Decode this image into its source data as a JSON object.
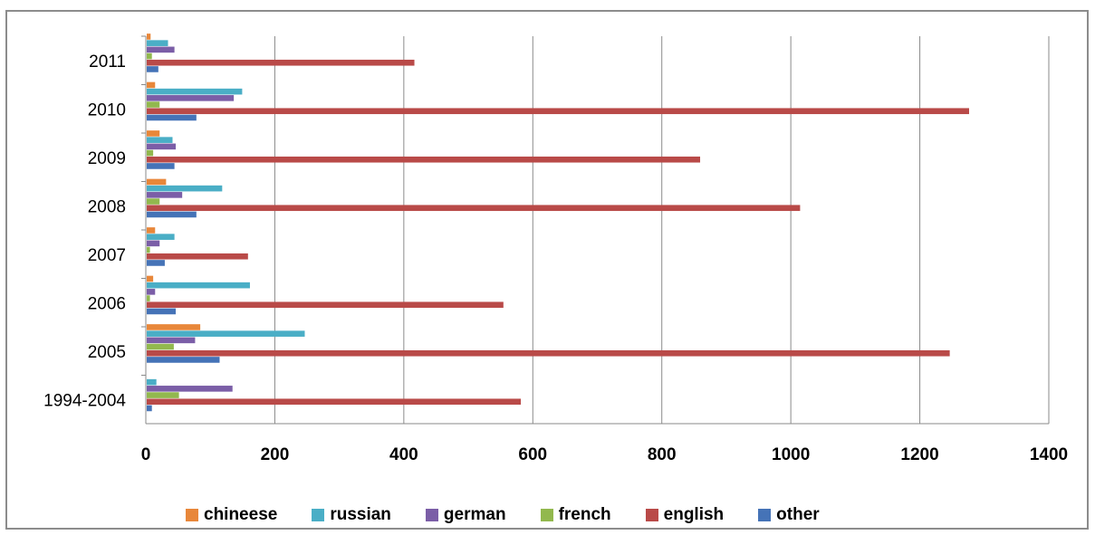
{
  "chart_data": {
    "type": "bar",
    "orientation": "horizontal",
    "categories": [
      "1994-2004",
      "2005",
      "2006",
      "2007",
      "2008",
      "2009",
      "2010",
      "2011"
    ],
    "series": [
      {
        "name": "chineese",
        "color": "#e8873a",
        "values": [
          0,
          83,
          10,
          13,
          30,
          20,
          13,
          6
        ]
      },
      {
        "name": "russian",
        "color": "#4aaec6",
        "values": [
          15,
          245,
          160,
          43,
          117,
          40,
          148,
          33
        ]
      },
      {
        "name": "german",
        "color": "#7b5ea7",
        "values": [
          133,
          75,
          13,
          20,
          55,
          45,
          135,
          43
        ]
      },
      {
        "name": "french",
        "color": "#92b84e",
        "values": [
          50,
          42,
          5,
          5,
          20,
          10,
          20,
          8
        ]
      },
      {
        "name": "english",
        "color": "#b94a48",
        "values": [
          580,
          1245,
          553,
          157,
          1013,
          858,
          1275,
          415
        ]
      },
      {
        "name": "other",
        "color": "#4573b7",
        "values": [
          8,
          113,
          45,
          28,
          77,
          43,
          77,
          18
        ]
      }
    ],
    "xticks": [
      0,
      200,
      400,
      600,
      800,
      1000,
      1200,
      1400
    ],
    "xlim": [
      0,
      1400
    ],
    "title": "",
    "xlabel": "",
    "ylabel": "",
    "grid": "vertical",
    "legend_position": "bottom"
  }
}
